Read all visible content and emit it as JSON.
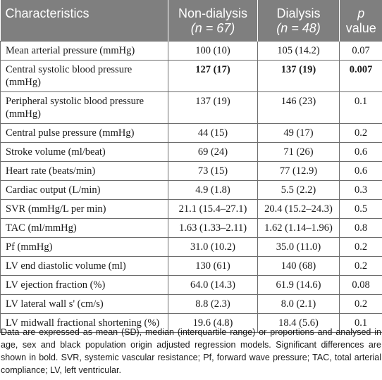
{
  "header": {
    "col1": "Characteristics",
    "col2_line1": "Non-dialysis",
    "col2_line2": "(n = 67)",
    "col3_line1": "Dialysis",
    "col3_line2": "(n = 48)",
    "col4_line1": "p",
    "col4_line2": "value"
  },
  "rows": [
    {
      "label": "Mean arterial pressure (mmHg)",
      "nd": "100 (10)",
      "d": "105 (14.2)",
      "p": "0.07",
      "bold": false
    },
    {
      "label": "Central systolic blood pressure (mmHg)",
      "nd": "127 (17)",
      "d": "137 (19)",
      "p": "0.007",
      "bold": true
    },
    {
      "label": "Peripheral systolic blood pressure (mmHg)",
      "nd": "137 (19)",
      "d": "146 (23)",
      "p": "0.1",
      "bold": false
    },
    {
      "label": "Central pulse pressure (mmHg)",
      "nd": "44 (15)",
      "d": "49 (17)",
      "p": "0.2",
      "bold": false
    },
    {
      "label": "Stroke volume (ml/beat)",
      "nd": "69 (24)",
      "d": "71 (26)",
      "p": "0.6",
      "bold": false
    },
    {
      "label": "Heart rate (beats/min)",
      "nd": "73 (15)",
      "d": "77 (12.9)",
      "p": "0.6",
      "bold": false
    },
    {
      "label": "Cardiac output (L/min)",
      "nd": "4.9 (1.8)",
      "d": "5.5 (2.2)",
      "p": "0.3",
      "bold": false
    },
    {
      "label": "SVR (mmHg/L per min)",
      "nd": "21.1 (15.4–27.1)",
      "d": "20.4 (15.2–24.3)",
      "p": "0.5",
      "bold": false
    },
    {
      "label": "TAC (ml/mmHg)",
      "nd": "1.63 (1.33–2.11)",
      "d": "1.62 (1.14–1.96)",
      "p": "0.8",
      "bold": false
    },
    {
      "label": "Pf (mmHg)",
      "nd": "31.0 (10.2)",
      "d": "35.0 (11.0)",
      "p": "0.2",
      "bold": false
    },
    {
      "label": "LV end diastolic volume (ml)",
      "nd": "130 (61)",
      "d": "140 (68)",
      "p": "0.2",
      "bold": false
    },
    {
      "label": "LV ejection fraction (%)",
      "nd": "64.0 (14.3)",
      "d": "61.9 (14.6)",
      "p": "0.08",
      "bold": false
    },
    {
      "label": "LV lateral wall s' (cm/s)",
      "nd": "8.8 (2.3)",
      "d": "8.0 (2.1)",
      "p": "0.2",
      "bold": false
    },
    {
      "label": "LV midwall fractional shortening (%)",
      "nd": "19.6 (4.8)",
      "d": "18.4 (5.6)",
      "p": "0.1",
      "bold": false
    }
  ],
  "footnote": "Data are expressed as mean (SD), median (interquartile range) or proportions and analysed in age, sex and black population origin adjusted regression models. Significant differences are shown in bold. SVR, systemic vascular resistance; Pf, forward wave pressure; TAC, total arterial compliance; LV, left ventricular."
}
